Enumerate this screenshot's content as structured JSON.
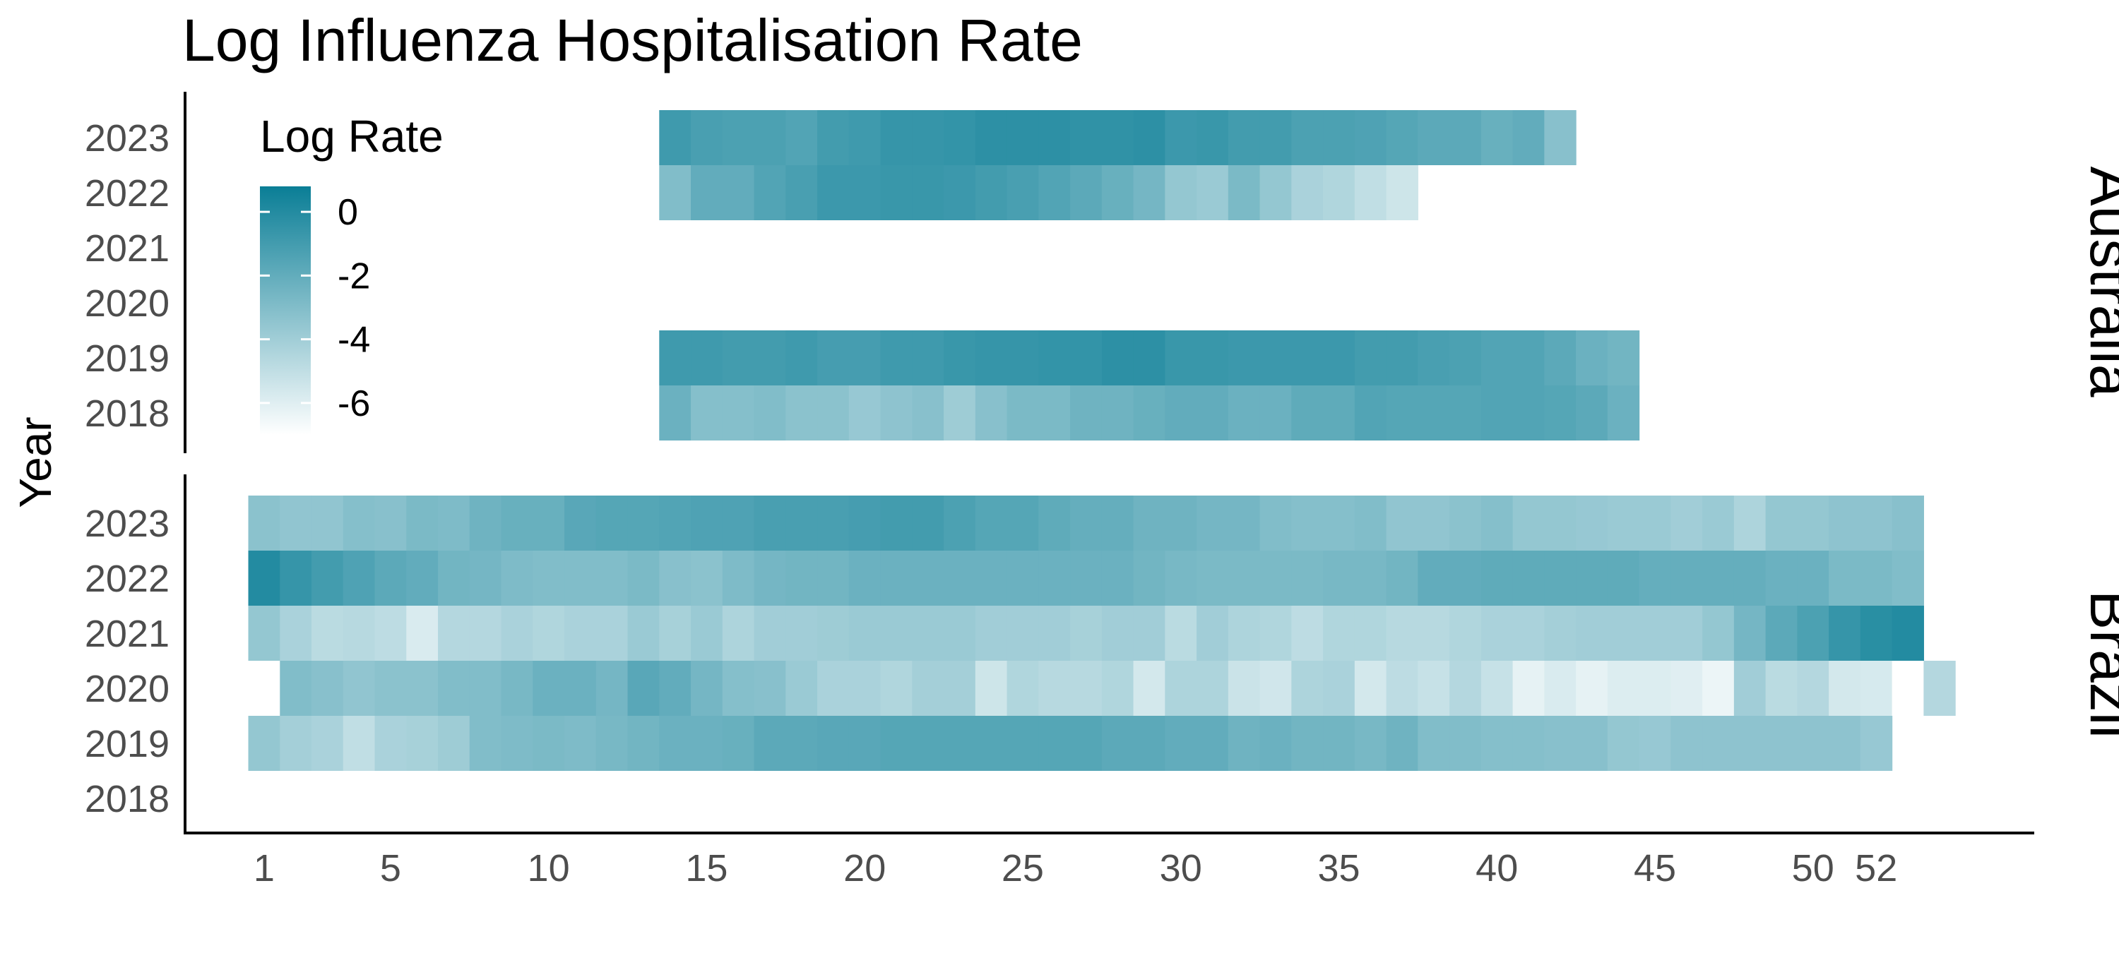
{
  "chart_data": {
    "type": "heatmap",
    "title": "Log Influenza Hospitalisation Rate",
    "xlabel": "",
    "ylabel": "Year",
    "x_ticks": [
      1,
      5,
      10,
      15,
      20,
      25,
      30,
      35,
      40,
      45,
      50,
      52
    ],
    "x_range": [
      -1.5,
      57
    ],
    "years": [
      2023,
      2022,
      2021,
      2020,
      2019,
      2018
    ],
    "grid": false,
    "legend": {
      "title": "Log Rate",
      "position": "top-left inside",
      "ticks": [
        0,
        -2,
        -4,
        -6
      ],
      "range": [
        -7,
        0.8
      ],
      "color_low": "#ffffff",
      "color_high": "#0a7e96"
    },
    "facets": [
      {
        "name": "Australia",
        "rows": [
          {
            "year": 2023,
            "start_week": 14,
            "values": [
              -0.9,
              -1.2,
              -1.3,
              -1.3,
              -1.5,
              -1.0,
              -0.9,
              -0.6,
              -0.6,
              -0.5,
              -0.3,
              -0.3,
              -0.3,
              -0.4,
              -0.4,
              -0.3,
              -0.8,
              -0.7,
              -1.0,
              -1.0,
              -1.3,
              -1.3,
              -1.4,
              -1.6,
              -1.8,
              -1.8,
              -2.2,
              -2.0,
              -3.2
            ]
          },
          {
            "year": 2022,
            "start_week": 14,
            "values": [
              -3.0,
              -2.0,
              -2.0,
              -1.5,
              -1.2,
              -0.8,
              -0.8,
              -0.7,
              -0.7,
              -0.8,
              -1.0,
              -1.2,
              -1.5,
              -1.8,
              -2.2,
              -2.6,
              -3.6,
              -3.8,
              -2.8,
              -3.6,
              -4.3,
              -4.5,
              -5.0,
              -5.4
            ]
          },
          {
            "year": 2019,
            "start_week": 14,
            "values": [
              -0.9,
              -0.9,
              -1.0,
              -1.0,
              -0.9,
              -1.1,
              -1.1,
              -0.9,
              -0.9,
              -0.7,
              -0.6,
              -0.6,
              -0.5,
              -0.5,
              -0.3,
              -0.3,
              -0.7,
              -0.7,
              -0.8,
              -0.8,
              -0.8,
              -0.8,
              -1.0,
              -1.0,
              -1.2,
              -1.3,
              -1.5,
              -1.5,
              -1.8,
              -2.3,
              -2.5
            ]
          },
          {
            "year": 2018,
            "start_week": 14,
            "values": [
              -2.3,
              -3.1,
              -3.1,
              -3.0,
              -3.3,
              -3.3,
              -3.7,
              -3.4,
              -3.2,
              -3.9,
              -3.2,
              -2.8,
              -2.8,
              -2.4,
              -2.4,
              -2.2,
              -2.0,
              -2.0,
              -2.3,
              -2.3,
              -1.9,
              -1.9,
              -1.5,
              -1.6,
              -1.6,
              -1.6,
              -1.5,
              -1.5,
              -1.6,
              -1.8,
              -2.3
            ]
          }
        ]
      },
      {
        "name": "Brazil",
        "rows": [
          {
            "year": 2023,
            "start_week": 1,
            "values": [
              -3.3,
              -3.5,
              -3.5,
              -3.1,
              -3.2,
              -2.8,
              -2.9,
              -2.4,
              -2.2,
              -2.2,
              -1.7,
              -1.6,
              -1.6,
              -1.5,
              -1.4,
              -1.4,
              -1.2,
              -1.2,
              -1.2,
              -1.1,
              -1.0,
              -1.0,
              -1.3,
              -1.6,
              -1.6,
              -1.9,
              -2.1,
              -2.1,
              -2.4,
              -2.4,
              -2.6,
              -2.6,
              -3.0,
              -3.1,
              -3.1,
              -3.0,
              -3.5,
              -3.5,
              -3.3,
              -3.1,
              -3.6,
              -3.6,
              -3.7,
              -3.8,
              -3.8,
              -4.0,
              -3.8,
              -4.4,
              -3.6,
              -3.6,
              -3.4,
              -3.4,
              -3.2
            ]
          },
          {
            "year": 2022,
            "start_week": 1,
            "values": [
              0.0,
              -0.6,
              -1.0,
              -1.4,
              -1.8,
              -2.0,
              -2.5,
              -2.6,
              -2.9,
              -3.0,
              -3.0,
              -3.0,
              -2.8,
              -3.2,
              -3.3,
              -2.9,
              -2.6,
              -2.5,
              -2.5,
              -2.3,
              -2.3,
              -2.3,
              -2.3,
              -2.3,
              -2.3,
              -2.3,
              -2.3,
              -2.3,
              -2.5,
              -2.7,
              -2.8,
              -2.8,
              -2.8,
              -2.8,
              -2.7,
              -2.7,
              -2.5,
              -2.0,
              -2.0,
              -1.9,
              -1.9,
              -1.9,
              -1.9,
              -1.9,
              -2.1,
              -2.1,
              -2.1,
              -2.1,
              -2.3,
              -2.3,
              -2.8,
              -2.8,
              -3.0
            ]
          },
          {
            "year": 2021,
            "start_week": 1,
            "values": [
              -3.6,
              -4.3,
              -4.8,
              -4.7,
              -4.9,
              -5.8,
              -4.6,
              -4.6,
              -4.3,
              -4.5,
              -4.3,
              -4.3,
              -3.8,
              -4.2,
              -3.8,
              -4.4,
              -4.0,
              -4.0,
              -3.9,
              -3.8,
              -3.8,
              -3.8,
              -3.8,
              -4.0,
              -4.0,
              -4.0,
              -4.2,
              -4.0,
              -4.0,
              -4.8,
              -4.0,
              -4.4,
              -4.5,
              -4.9,
              -4.5,
              -4.5,
              -4.7,
              -4.7,
              -4.5,
              -4.3,
              -4.3,
              -4.1,
              -4.0,
              -4.0,
              -4.0,
              -4.0,
              -3.6,
              -2.6,
              -1.8,
              -1.3,
              -0.6,
              -0.2,
              0.0
            ]
          },
          {
            "year": 2020,
            "start_week": 2,
            "values": [
              -3.0,
              -3.2,
              -3.5,
              -3.3,
              -3.3,
              -3.0,
              -3.0,
              -2.7,
              -2.3,
              -2.3,
              -2.6,
              -1.7,
              -2.0,
              -2.6,
              -3.1,
              -3.2,
              -3.8,
              -4.3,
              -4.3,
              -4.5,
              -4.1,
              -4.1,
              -5.4,
              -4.5,
              -4.7,
              -4.7,
              -4.5,
              -5.6,
              -4.4,
              -4.4,
              -5.3,
              -5.5,
              -4.4,
              -4.3,
              -5.6,
              -4.9,
              -5.2,
              -4.6,
              -5.2,
              -6.2,
              -5.8,
              -6.2,
              -5.9,
              -5.9,
              -6.0,
              -6.4,
              -4.0,
              -4.8,
              -4.6,
              -5.6,
              -5.7,
              -7.0,
              -4.6
            ]
          },
          {
            "year": 2019,
            "start_week": 1,
            "values": [
              -3.6,
              -4.1,
              -4.3,
              -5.0,
              -4.3,
              -4.2,
              -3.9,
              -3.0,
              -2.9,
              -2.8,
              -2.9,
              -2.7,
              -2.5,
              -2.3,
              -2.3,
              -2.2,
              -1.8,
              -1.8,
              -1.7,
              -1.7,
              -1.6,
              -1.6,
              -1.6,
              -1.6,
              -1.6,
              -1.6,
              -1.6,
              -1.8,
              -1.8,
              -2.0,
              -2.0,
              -2.4,
              -2.3,
              -2.5,
              -2.5,
              -2.7,
              -2.4,
              -3.0,
              -3.0,
              -3.1,
              -3.1,
              -3.2,
              -3.2,
              -3.6,
              -3.7,
              -3.4,
              -3.4,
              -3.4,
              -3.4,
              -3.4,
              -3.4,
              -3.7
            ]
          }
        ]
      }
    ]
  }
}
